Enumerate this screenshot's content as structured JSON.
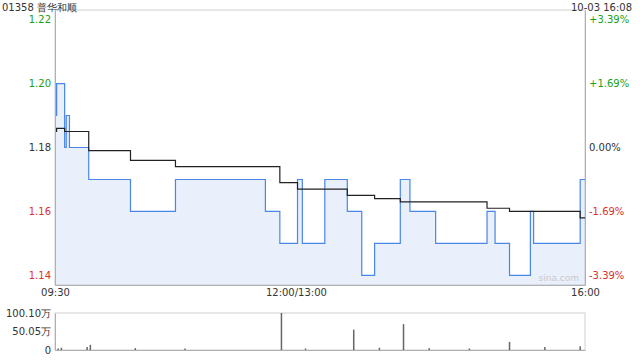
{
  "chart_data": [
    {
      "type": "line",
      "title": "01358 普华和顺",
      "subtitle": "10-03 16:08",
      "annotations": [
        "sina.com"
      ],
      "x": [
        0,
        1,
        6,
        7,
        9,
        21,
        47,
        75,
        131,
        140,
        151,
        154,
        168,
        182,
        191,
        199,
        215,
        221,
        237,
        269,
        274,
        283,
        296,
        298,
        327,
        330
      ],
      "xlim": [
        0,
        330
      ],
      "xticks": [
        {
          "value": 0,
          "label": "09:30"
        },
        {
          "value": 150,
          "label": "12:00/13:00"
        },
        {
          "value": 330,
          "label": "16:00"
        }
      ],
      "ylim": [
        1.137,
        1.223
      ],
      "yticks": [
        1.14,
        1.16,
        1.18,
        {
          "value": 1.2,
          "label": "1.20"
        },
        1.22
      ],
      "y2lim": [
        -3.644,
        3.644
      ],
      "y2ticks": [
        {
          "value": -3.39,
          "label": "-3.39%"
        },
        {
          "value": -1.69,
          "label": "-1.69%"
        },
        {
          "value": 0,
          "label": "0.00%"
        },
        {
          "value": 1.69,
          "label": "+1.69%"
        },
        {
          "value": 3.39,
          "label": "+3.39%"
        }
      ],
      "grid": false,
      "series": [
        {
          "color": "#4a86e8",
          "line_style": "step",
          "values": [
            1.19,
            1.2,
            1.18,
            1.19,
            1.18,
            1.17,
            1.16,
            1.17,
            1.16,
            1.15,
            1.17,
            1.15,
            1.17,
            1.16,
            1.14,
            1.15,
            1.17,
            1.16,
            1.15,
            1.16,
            1.15,
            1.14,
            1.16,
            1.15,
            1.17,
            1.17
          ]
        },
        {
          "color": "#222222",
          "line_style": "step",
          "values": [
            1.185,
            1.186,
            1.185,
            1.185,
            1.185,
            1.179,
            1.176,
            1.174,
            1.174,
            1.169,
            1.167,
            1.167,
            1.167,
            1.165,
            1.165,
            1.164,
            1.163,
            1.163,
            1.163,
            1.161,
            1.161,
            1.16,
            1.16,
            1.16,
            1.158,
            1.158
          ]
        }
      ]
    },
    {
      "type": "bar",
      "x": [
        2,
        4,
        20,
        22,
        50,
        81,
        141,
        156,
        186,
        202,
        217,
        233,
        258,
        283,
        305,
        327
      ],
      "values": [
        4,
        6,
        8,
        14,
        5,
        4,
        100.1,
        4,
        55,
        6,
        70,
        5,
        4,
        22,
        8,
        10
      ],
      "color": "#666666",
      "xlim": [
        0,
        330
      ],
      "ylim": [
        0,
        100.1
      ],
      "yticks": [
        0,
        {
          "value": 50.05,
          "label": "50.05万"
        },
        {
          "value": 100.1,
          "label": "100.10万"
        }
      ],
      "tick_labels": "y"
    }
  ]
}
